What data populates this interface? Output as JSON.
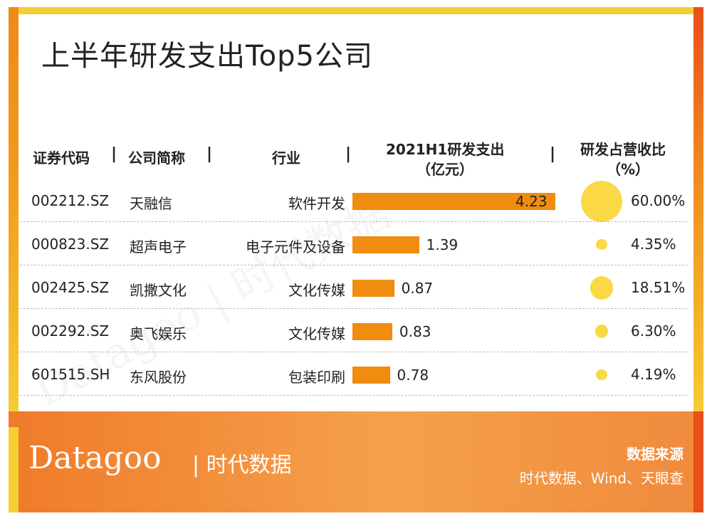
{
  "title": "上半年研发支出Top5公司",
  "watermark": "Datagoo | 时代数据",
  "headers": {
    "code": "证券代码",
    "name": "公司简称",
    "industry": "行业",
    "spend_line1": "2021H1研发支出",
    "spend_line2": "（亿元）",
    "ratio_line1": "研发占营收比",
    "ratio_line2": "（%）",
    "separator": "|"
  },
  "chart_data": {
    "type": "table",
    "columns": [
      "证券代码",
      "公司简称",
      "行业",
      "2021H1研发支出（亿元）",
      "研发占营收比（%）"
    ],
    "rows": [
      {
        "code": "002212.SZ",
        "name": "天融信",
        "industry": "软件开发",
        "spend": 4.23,
        "spend_label": "4.23",
        "ratio": 60.0,
        "ratio_label": "60.00%"
      },
      {
        "code": "000823.SZ",
        "name": "超声电子",
        "industry": "电子元件及设备",
        "spend": 1.39,
        "spend_label": "1.39",
        "ratio": 4.35,
        "ratio_label": "4.35%"
      },
      {
        "code": "002425.SZ",
        "name": "凯撒文化",
        "industry": "文化传媒",
        "spend": 0.87,
        "spend_label": "0.87",
        "ratio": 18.51,
        "ratio_label": "18.51%"
      },
      {
        "code": "002292.SZ",
        "name": "奥飞娱乐",
        "industry": "文化传媒",
        "spend": 0.83,
        "spend_label": "0.83",
        "ratio": 6.3,
        "ratio_label": "6.30%"
      },
      {
        "code": "601515.SH",
        "name": "东风股份",
        "industry": "包装印刷",
        "spend": 0.78,
        "spend_label": "0.78",
        "ratio": 4.19,
        "ratio_label": "4.19%"
      }
    ],
    "spend_max": 4.23,
    "ratio_max": 60.0
  },
  "footer": {
    "logo": "Datagoo",
    "logo_cn": "| 时代数据",
    "source_title": "数据来源",
    "source_body": "时代数据、Wind、天眼查"
  },
  "colors": {
    "bar": "#f08c10",
    "dot": "#fbd946",
    "frame_yellow": "#f6cd33",
    "footer_orange": "#f07b2a"
  }
}
